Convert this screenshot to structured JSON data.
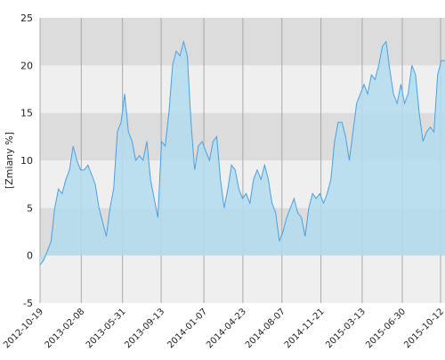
{
  "chart_data": {
    "type": "area",
    "y_label": "[Zmiany %]",
    "x": [
      "2012-10-19",
      "2012-10-29",
      "2012-11-08",
      "2012-11-18",
      "2012-11-28",
      "2012-12-08",
      "2012-12-18",
      "2012-12-28",
      "2013-01-07",
      "2013-01-17",
      "2013-01-27",
      "2013-02-06",
      "2013-02-16",
      "2013-02-26",
      "2013-03-08",
      "2013-03-18",
      "2013-03-28",
      "2013-04-07",
      "2013-04-17",
      "2013-04-27",
      "2013-05-07",
      "2013-05-17",
      "2013-05-27",
      "2013-06-06",
      "2013-06-16",
      "2013-06-26",
      "2013-07-06",
      "2013-07-16",
      "2013-07-26",
      "2013-08-05",
      "2013-08-15",
      "2013-08-25",
      "2013-09-04",
      "2013-09-14",
      "2013-09-24",
      "2013-10-04",
      "2013-10-14",
      "2013-10-24",
      "2013-11-03",
      "2013-11-13",
      "2013-11-23",
      "2013-12-03",
      "2013-12-13",
      "2013-12-23",
      "2014-01-02",
      "2014-01-12",
      "2014-01-22",
      "2014-02-01",
      "2014-02-11",
      "2014-02-21",
      "2014-03-03",
      "2014-03-13",
      "2014-03-23",
      "2014-04-02",
      "2014-04-12",
      "2014-04-22",
      "2014-05-02",
      "2014-05-12",
      "2014-05-22",
      "2014-06-01",
      "2014-06-11",
      "2014-06-21",
      "2014-07-01",
      "2014-07-11",
      "2014-07-21",
      "2014-07-31",
      "2014-08-10",
      "2014-08-20",
      "2014-08-30",
      "2014-09-09",
      "2014-09-19",
      "2014-09-29",
      "2014-10-09",
      "2014-10-19",
      "2014-10-29",
      "2014-11-08",
      "2014-11-18",
      "2014-11-28",
      "2014-12-08",
      "2014-12-18",
      "2014-12-28",
      "2015-01-07",
      "2015-01-17",
      "2015-01-27",
      "2015-02-06",
      "2015-02-16",
      "2015-02-26",
      "2015-03-08",
      "2015-03-18",
      "2015-03-28",
      "2015-04-07",
      "2015-04-17",
      "2015-04-27",
      "2015-05-07",
      "2015-05-17",
      "2015-05-27",
      "2015-06-06",
      "2015-06-16",
      "2015-06-26",
      "2015-07-06",
      "2015-07-16",
      "2015-07-26",
      "2015-08-05",
      "2015-08-15",
      "2015-08-25",
      "2015-09-04",
      "2015-09-14",
      "2015-09-24",
      "2015-10-04",
      "2015-10-14",
      "2015-10-24"
    ],
    "series": [
      {
        "color": "#4aa0e0",
        "fill": "#b3dcef",
        "values": [
          -1,
          -0.5,
          0.5,
          1.5,
          5,
          7,
          6.5,
          8,
          9,
          11.5,
          10,
          9,
          9,
          9.5,
          8.5,
          7.5,
          5,
          3.5,
          2,
          5,
          7,
          13,
          14,
          17,
          13,
          12,
          10,
          10.5,
          10,
          12,
          8,
          6,
          4,
          12,
          11.5,
          15,
          20,
          21.5,
          21,
          22.5,
          21,
          14,
          9,
          11.5,
          12,
          11,
          10,
          12,
          12.5,
          8,
          5,
          7,
          9.5,
          9,
          7,
          6,
          6.5,
          5.5,
          8,
          9,
          8,
          9.5,
          8,
          5.5,
          4.5,
          1.5,
          2.5,
          4,
          5,
          6,
          4.5,
          4,
          2,
          5,
          6.5,
          6,
          6.5,
          5.5,
          6.5,
          8,
          12,
          14,
          14,
          12.5,
          10,
          13,
          16,
          17,
          18,
          17,
          19,
          18.5,
          20,
          22,
          22.5,
          19.5,
          17,
          16,
          18,
          16,
          17,
          20,
          19,
          15,
          12,
          13,
          13.5,
          13,
          19,
          20.5,
          20.5
        ]
      }
    ],
    "xlim": [
      "2012-10-19",
      "2015-10-24"
    ],
    "xticks": [
      "2012-10-19",
      "2013-02-08",
      "2013-05-31",
      "2013-09-13",
      "2014-01-07",
      "2014-04-23",
      "2014-08-07",
      "2014-11-21",
      "2015-03-13",
      "2015-06-30",
      "2015-10-12"
    ],
    "ylim": [
      -5,
      25
    ],
    "yticks": [
      -5,
      0,
      5,
      10,
      15,
      20,
      25
    ],
    "grid": true
  }
}
